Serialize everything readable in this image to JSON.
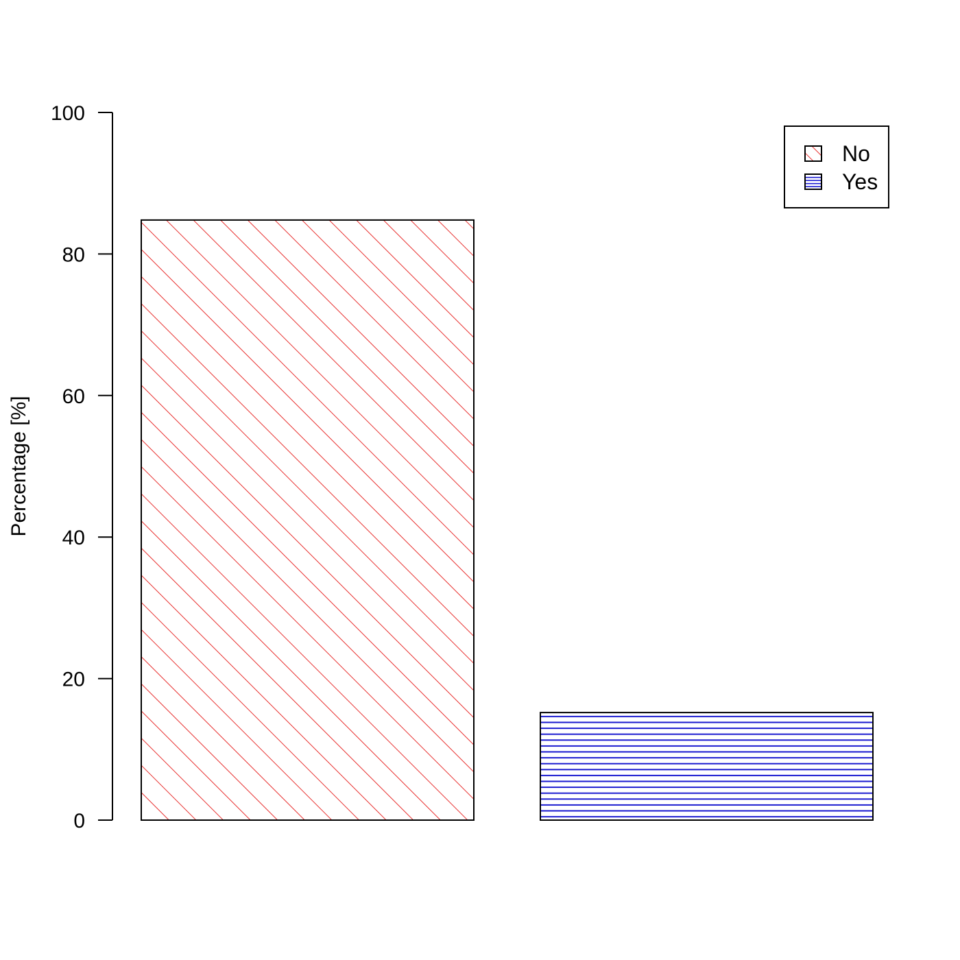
{
  "chart_data": {
    "type": "bar",
    "title": "",
    "xlabel": "",
    "ylabel": "Percentage [%]",
    "ylim": [
      0,
      100
    ],
    "yticks": [
      0,
      20,
      40,
      60,
      80,
      100
    ],
    "grid": false,
    "legend_position": "top-right",
    "series": [
      {
        "name": "No",
        "value": 84.8,
        "color": "#e8302f",
        "pattern": "diagonal-hatch"
      },
      {
        "name": "Yes",
        "value": 15.2,
        "color": "#1a1ad0",
        "pattern": "horizontal-hatch"
      }
    ]
  }
}
